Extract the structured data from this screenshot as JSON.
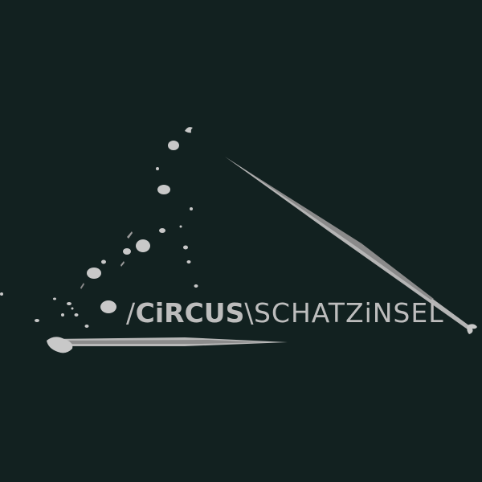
{
  "artwork": {
    "background_color": "#122120",
    "paint_color": "#c8c8c8",
    "wordmark": {
      "slash": "/",
      "first_word": "CiRCUS",
      "separator": "\\",
      "second_word": "SCHATZiNSEL",
      "color": "#bdbdbd"
    }
  }
}
